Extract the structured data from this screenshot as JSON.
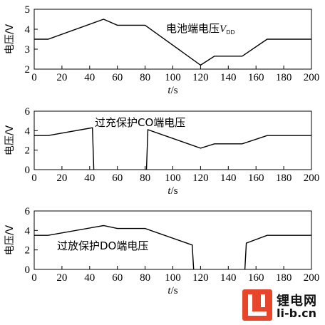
{
  "chart_data": [
    {
      "type": "line",
      "annotation": "电池端电压V_DD",
      "ylabel": "电压/V",
      "xlabel": "t/s",
      "xlim": [
        0,
        200
      ],
      "ylim": [
        2,
        5
      ],
      "xticks": [
        0,
        20,
        40,
        60,
        80,
        100,
        120,
        140,
        160,
        180,
        200
      ],
      "yticks": [
        2,
        3,
        4,
        5
      ],
      "segments": [
        [
          [
            0,
            3.5
          ],
          [
            10,
            3.5
          ],
          [
            50,
            4.5
          ],
          [
            60,
            4.2
          ],
          [
            80,
            4.2
          ],
          [
            120,
            2.2
          ],
          [
            130,
            2.65
          ],
          [
            150,
            2.65
          ],
          [
            168,
            3.5
          ],
          [
            200,
            3.5
          ]
        ]
      ]
    },
    {
      "type": "line",
      "annotation": "过充保护CO端电压",
      "ylabel": "电压/V",
      "xlabel": "t/s",
      "xlim": [
        0,
        200
      ],
      "ylim": [
        0,
        6
      ],
      "xticks": [
        0,
        20,
        40,
        60,
        80,
        100,
        120,
        140,
        160,
        180,
        200
      ],
      "yticks": [
        0,
        2,
        4,
        6
      ],
      "segments": [
        [
          [
            0,
            3.5
          ],
          [
            10,
            3.5
          ],
          [
            42,
            4.3
          ],
          [
            43,
            0
          ]
        ],
        [
          [
            81,
            0
          ],
          [
            82,
            4.1
          ],
          [
            120,
            2.2
          ],
          [
            130,
            2.65
          ],
          [
            150,
            2.65
          ],
          [
            168,
            3.5
          ],
          [
            200,
            3.5
          ]
        ]
      ]
    },
    {
      "type": "line",
      "annotation": "过放保护DO端电压",
      "ylabel": "电压/V",
      "xlabel": "t/s",
      "xlim": [
        0,
        200
      ],
      "ylim": [
        0,
        6
      ],
      "xticks": [
        0,
        20,
        40,
        60,
        80,
        100,
        120,
        140,
        160,
        180,
        200
      ],
      "yticks": [
        0,
        2,
        4,
        6
      ],
      "segments": [
        [
          [
            0,
            3.5
          ],
          [
            10,
            3.5
          ],
          [
            50,
            4.5
          ],
          [
            60,
            4.2
          ],
          [
            80,
            4.2
          ],
          [
            114,
            2.5
          ],
          [
            115,
            0
          ]
        ],
        [
          [
            152,
            0
          ],
          [
            153,
            2.7
          ],
          [
            168,
            3.5
          ],
          [
            200,
            3.5
          ]
        ]
      ]
    }
  ],
  "logo": {
    "name": "锂电网",
    "url": "li-b.cn"
  }
}
